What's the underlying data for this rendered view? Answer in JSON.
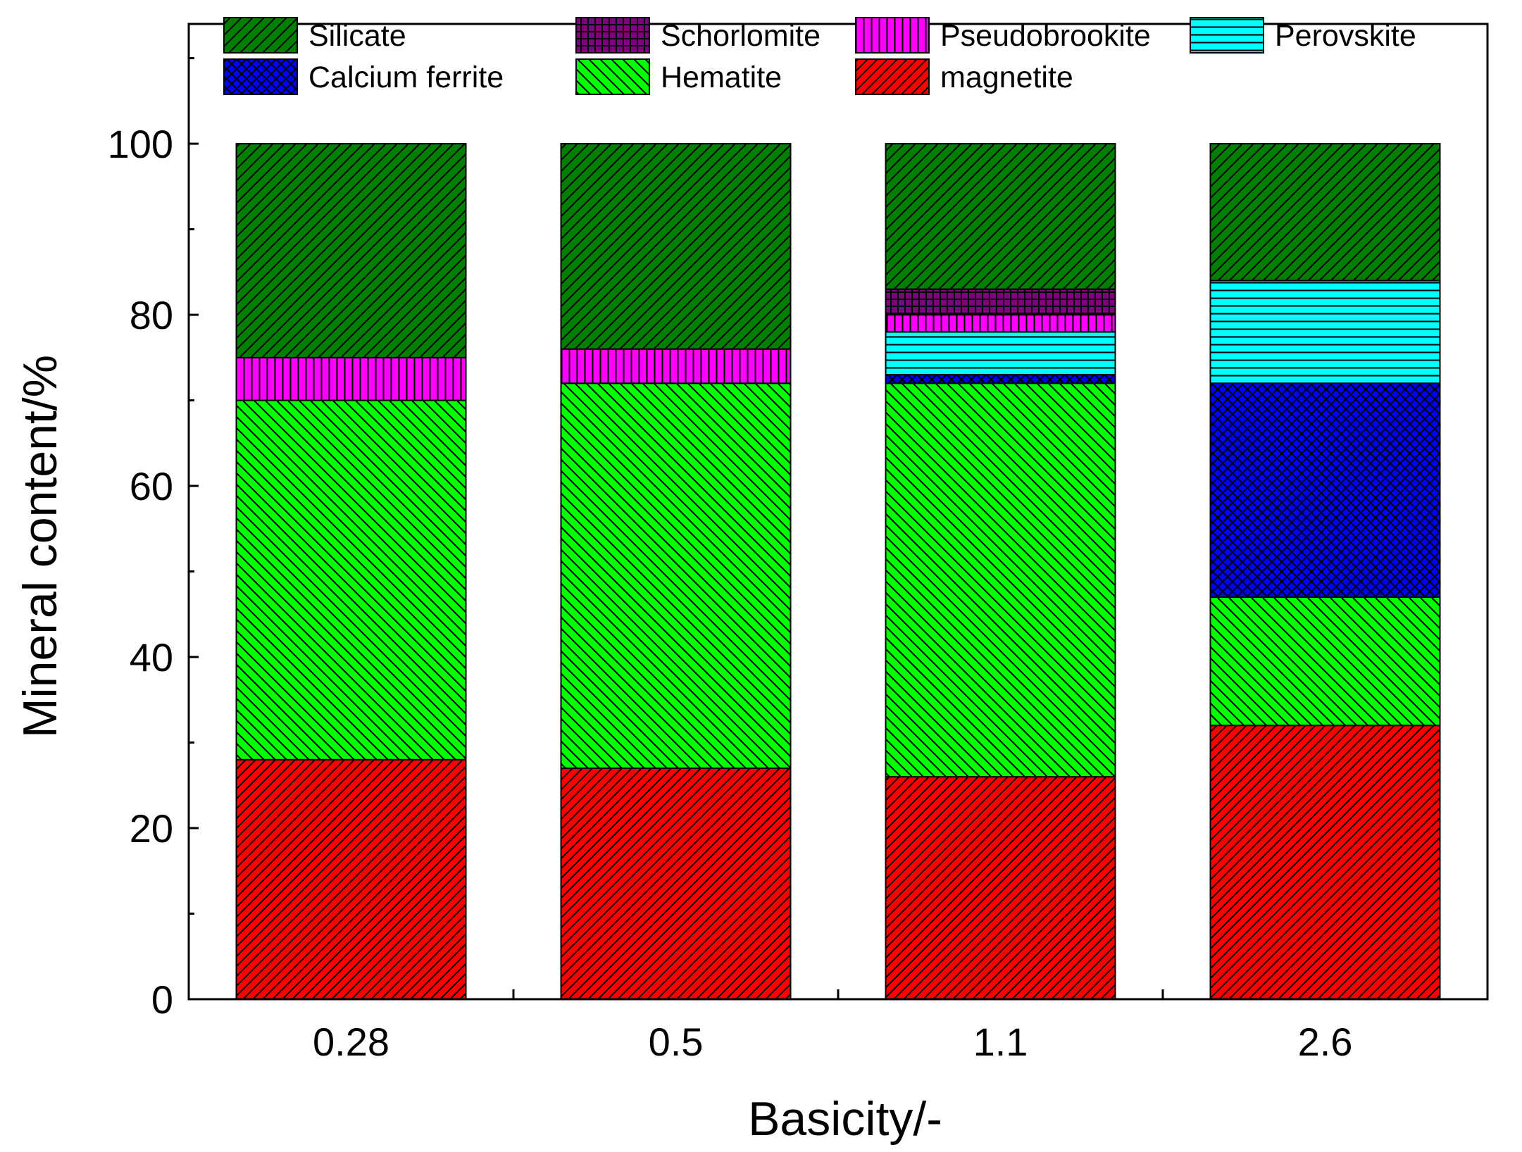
{
  "chart_data": {
    "type": "stacked-bar",
    "title": "",
    "xlabel": "Basicity/-",
    "ylabel": "Mineral content/%",
    "ylim": [
      0,
      114
    ],
    "yticks": [
      0,
      20,
      40,
      60,
      80,
      100
    ],
    "ytick_labels": [
      "0",
      "20",
      "40",
      "60",
      "80",
      "100"
    ],
    "categories": [
      "0.28",
      "0.5",
      "1.1",
      "2.6"
    ],
    "grid": false,
    "legend_position": "top",
    "series": [
      {
        "name": "magnetite",
        "color": "#ff0000",
        "pattern": "diag-right-dense",
        "values": [
          28,
          27,
          26,
          32
        ]
      },
      {
        "name": "Hematite",
        "color": "#00ff00",
        "pattern": "diag-left",
        "values": [
          42,
          45,
          46,
          15
        ]
      },
      {
        "name": "Calcium ferrite",
        "color": "#0000ff",
        "pattern": "crosshatch-diag",
        "values": [
          0,
          0,
          1,
          25
        ]
      },
      {
        "name": "Perovskite",
        "color": "#00ffff",
        "pattern": "horizontal",
        "values": [
          0,
          0,
          5,
          12
        ]
      },
      {
        "name": "Pseudobrookite",
        "color": "#ff00ff",
        "pattern": "vertical",
        "values": [
          5,
          4,
          2,
          0
        ]
      },
      {
        "name": "Schorlomite",
        "color": "#800080",
        "pattern": "crosshatch-square",
        "values": [
          0,
          0,
          3,
          0
        ]
      },
      {
        "name": "Silicate",
        "color": "#007f00",
        "pattern": "diag-right",
        "values": [
          25,
          24,
          17,
          16
        ]
      }
    ],
    "legend_order": [
      "Silicate",
      "Schorlomite",
      "Pseudobrookite",
      "Perovskite",
      "Calcium ferrite",
      "Hematite",
      "magnetite"
    ]
  }
}
